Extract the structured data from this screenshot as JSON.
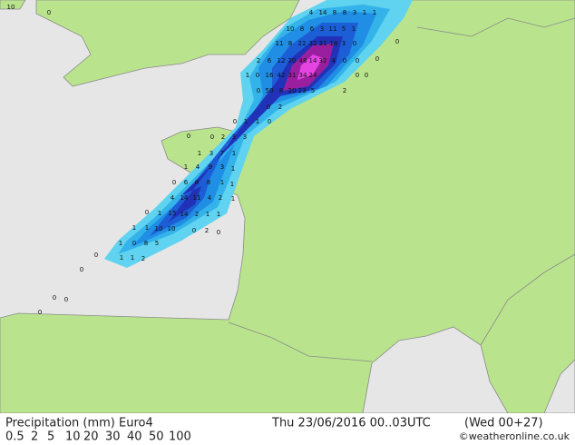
{
  "title": "Precipitation (mm) Euro4",
  "valid_time": "Thu 23/06/2016 00..03UTC",
  "run": "(Wed 00+27)",
  "copyright": "©weatheronline.co.uk",
  "legend": [
    {
      "value": 0.5,
      "color": "#5fd3ef"
    },
    {
      "value": 2,
      "color": "#33b3ea"
    },
    {
      "value": 5,
      "color": "#1f8ee4"
    },
    {
      "value": 10,
      "color": "#1b5ed6"
    },
    {
      "value": 20,
      "color": "#2232b8"
    },
    {
      "value": 30,
      "color": "#5a1fa0"
    },
    {
      "value": 40,
      "color": "#9a1f9e"
    },
    {
      "value": 50,
      "color": "#c32cc0"
    },
    {
      "value": 100,
      "color": "#e544e2"
    }
  ],
  "map_labels": [
    10,
    0,
    4,
    14,
    8,
    8,
    3,
    1,
    1,
    10,
    8,
    6,
    3,
    11,
    5,
    1,
    11,
    8,
    22,
    32,
    31,
    18,
    3,
    0,
    0,
    2,
    6,
    12,
    20,
    48,
    14,
    32,
    4,
    0,
    0,
    0,
    1,
    0,
    16,
    42,
    31,
    34,
    24,
    0,
    0,
    0,
    50,
    8,
    20,
    23,
    5,
    2,
    0,
    2,
    0,
    1,
    1,
    0,
    0,
    0,
    2,
    3,
    3,
    1,
    3,
    7,
    1,
    1,
    4,
    9,
    3,
    1,
    0,
    6,
    8,
    8,
    1,
    1,
    4,
    14,
    11,
    4,
    2,
    1,
    0,
    1,
    15,
    14,
    2,
    1,
    1,
    1,
    1,
    10,
    10,
    0,
    2,
    0,
    1,
    0,
    8,
    5,
    0,
    1,
    1,
    2,
    0,
    0,
    0,
    0
  ]
}
